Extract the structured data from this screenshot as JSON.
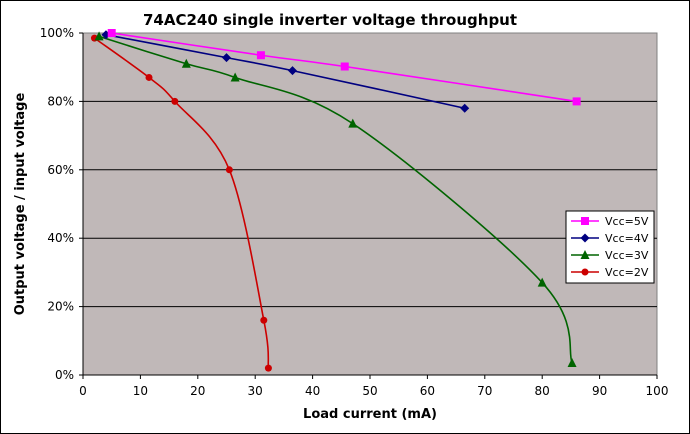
{
  "chart_data": {
    "type": "line",
    "title": "74AC240 single inverter voltage throughput",
    "xlabel": "Load current (mA)",
    "ylabel": "Output voltage / input voltage",
    "xlim": [
      0,
      100
    ],
    "ylim": [
      0,
      1
    ],
    "x_ticks": [
      "0",
      "10",
      "20",
      "30",
      "40",
      "50",
      "60",
      "70",
      "80",
      "90",
      "100"
    ],
    "y_ticks": [
      "0%",
      "20%",
      "40%",
      "60%",
      "80%",
      "100%"
    ],
    "grid": "horizontal",
    "legend_position": "right",
    "background_color": "#c0b8b8",
    "series": [
      {
        "name": "Vcc=5V",
        "color": "#ff00ff",
        "marker": "square",
        "x": [
          5,
          31,
          45.6,
          86
        ],
        "y": [
          1.0,
          0.935,
          0.902,
          0.8
        ]
      },
      {
        "name": "Vcc=4V",
        "color": "#000080",
        "marker": "diamond",
        "x": [
          4,
          25,
          36.5,
          66.5
        ],
        "y": [
          0.995,
          0.928,
          0.89,
          0.78
        ]
      },
      {
        "name": "Vcc=3V",
        "color": "#006400",
        "marker": "triangle",
        "x": [
          2.8,
          18,
          26.5,
          47,
          80,
          85.2
        ],
        "y": [
          0.99,
          0.91,
          0.87,
          0.735,
          0.27,
          0.035
        ]
      },
      {
        "name": "Vcc=2V",
        "color": "#cc0000",
        "marker": "circle",
        "x": [
          2,
          11.5,
          16,
          25.5,
          31.5,
          32.3
        ],
        "y": [
          0.985,
          0.87,
          0.8,
          0.6,
          0.16,
          0.02
        ]
      }
    ]
  }
}
